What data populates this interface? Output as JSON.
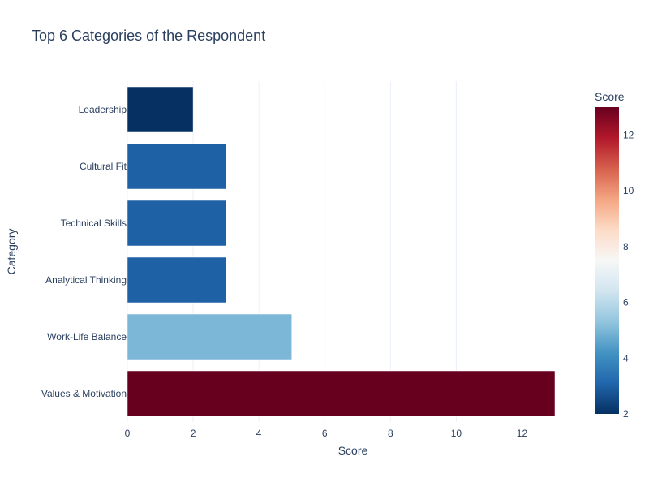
{
  "chart_data": {
    "type": "bar",
    "orientation": "horizontal",
    "title": "Top 6 Categories of the Respondent",
    "xlabel": "Score",
    "ylabel": "Category",
    "categories": [
      "Leadership",
      "Cultural Fit",
      "Technical Skills",
      "Analytical Thinking",
      "Work-Life Balance",
      "Values & Motivation"
    ],
    "values": [
      2,
      3,
      3,
      3,
      5,
      13
    ],
    "xlim": [
      0,
      13
    ],
    "xticks": [
      0,
      2,
      4,
      6,
      8,
      10,
      12
    ],
    "grid": true,
    "colorbar": {
      "title": "Score",
      "range": [
        2,
        13
      ],
      "ticks": [
        2,
        4,
        6,
        8,
        10,
        12
      ],
      "colorscale": [
        "#053061",
        "#2166ac",
        "#4393c3",
        "#92c5de",
        "#d1e5f0",
        "#f7f7f7",
        "#fddbc7",
        "#f4a582",
        "#d6604d",
        "#b2182b",
        "#67001f"
      ]
    }
  }
}
